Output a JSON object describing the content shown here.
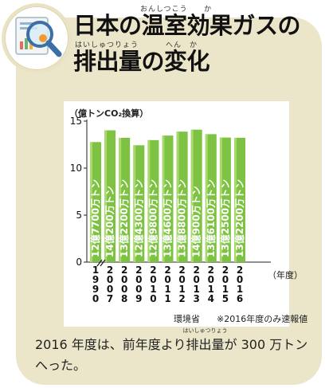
{
  "title": {
    "line1": "日本の温室効果ガスの",
    "line2": "排出量の変化",
    "ruby_onshitsukouka": "おんしつこう",
    "ruby_ka": "か",
    "ruby_haishutsuryou": "はいしゅつりょう",
    "ruby_henka": "へん　か"
  },
  "icon": "magnifier-over-chart-icon",
  "chart_data": {
    "type": "bar",
    "unit": "（億トンCO₂換算）",
    "categories": [
      "1990",
      "2007",
      "2008",
      "2009",
      "2010",
      "2011",
      "2012",
      "2013",
      "2014",
      "2015",
      "2016"
    ],
    "category_chars": [
      [
        "1",
        "9",
        "9",
        "0"
      ],
      [
        "2",
        "0",
        "0",
        "7"
      ],
      [
        "2",
        "0",
        "0",
        "8"
      ],
      [
        "2",
        "0",
        "0",
        "9"
      ],
      [
        "2",
        "0",
        "1",
        "0"
      ],
      [
        "2",
        "0",
        "1",
        "1"
      ],
      [
        "2",
        "0",
        "1",
        "2"
      ],
      [
        "2",
        "0",
        "1",
        "3"
      ],
      [
        "2",
        "0",
        "1",
        "4"
      ],
      [
        "2",
        "0",
        "1",
        "5"
      ],
      [
        "2",
        "0",
        "1",
        "6"
      ]
    ],
    "values": [
      12.77,
      14.02,
      13.22,
      12.43,
      12.98,
      13.46,
      13.88,
      14.09,
      13.61,
      13.25,
      13.22
    ],
    "value_labels": [
      "12億7700万トン",
      "14億200万トン",
      "13億2200万トン",
      "12億4300万トン",
      "12億9800万トン",
      "13億4600万トン",
      "13億8800万トン",
      "14億900万トン",
      "13億6100万トン",
      "13億2500万トン",
      "13億2200万トン"
    ],
    "yticks": [
      "0",
      "5",
      "10",
      "15"
    ],
    "ylim": [
      0,
      15
    ],
    "xlabel": "（年度）",
    "axis_break": true,
    "grid": false,
    "bar_color": "#7dc242",
    "bar_color_light": "#a8d96b"
  },
  "source": "環境省",
  "note": "※2016年度のみ速報値",
  "caption": {
    "before": "2016 年度は、前年度より",
    "ruby_base": "排出量",
    "ruby_text": "はいしゅつりょう",
    "after_line1": "が 300 万トン",
    "line2": "へった。"
  }
}
